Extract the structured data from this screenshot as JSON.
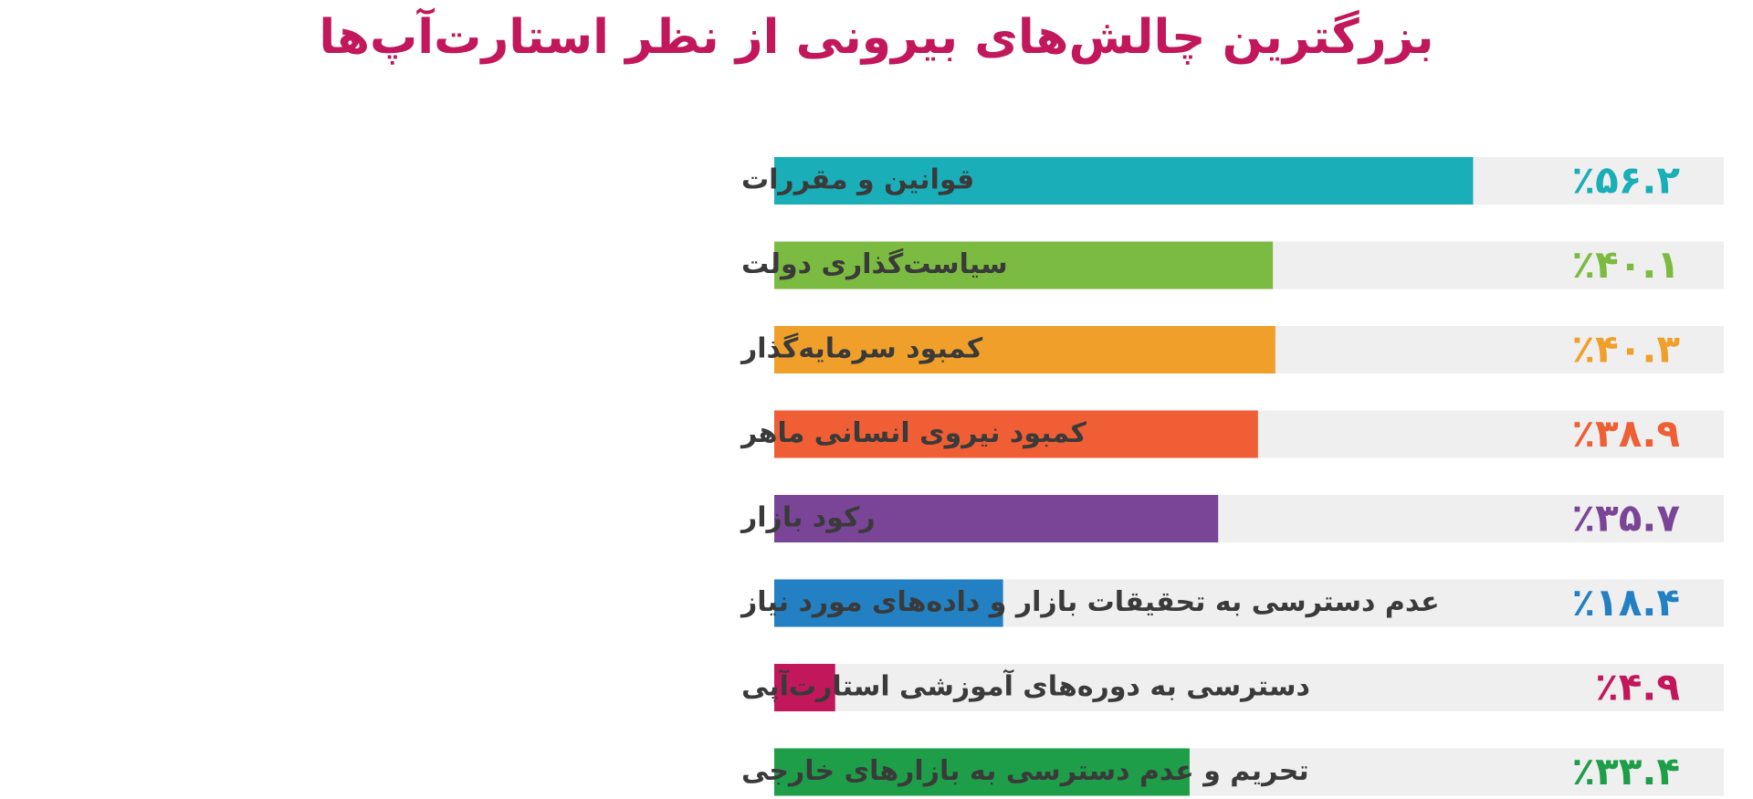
{
  "title": "بزرگترین چالش‌های بیرونی از نظر استارت‌آپ‌ها",
  "title_color": "#c2185b",
  "track_color": "#efefef",
  "chart_data": {
    "type": "bar",
    "orientation": "horizontal",
    "title": "بزرگترین چالش‌های بیرونی از نظر استارت‌آپ‌ها",
    "xlabel": "",
    "ylabel": "",
    "xlim": [
      0,
      100
    ],
    "grid": false,
    "unit": "%",
    "categories": [
      "قوانین و مقررات",
      "سیاست‌گذاری دولت",
      "کمبود سرمایه‌گذار",
      "کمبود نیروی انسانی ماهر",
      "رکود بازار",
      "عدم دسترسی به تحقیقات بازار و داده‌های مورد نیاز",
      "دسترسی به دوره‌های آموزشی استارت‌آپی",
      "تحریم و عدم دسترسی به بازارهای خارجی"
    ],
    "values": [
      56.2,
      40.1,
      40.3,
      38.9,
      35.7,
      18.4,
      4.9,
      33.4
    ],
    "value_labels": [
      "٪۵۶.۲",
      "٪۴۰.۱",
      "٪۴۰.۳",
      "٪۳۸.۹",
      "٪۳۵.۷",
      "٪۱۸.۴",
      "٪۴.۹",
      "٪۳۳.۴"
    ],
    "colors": [
      "#1aaeb8",
      "#7cbb41",
      "#f0a02a",
      "#ef5e34",
      "#7a4597",
      "#2280c3",
      "#c2185b",
      "#1e9e48"
    ]
  }
}
